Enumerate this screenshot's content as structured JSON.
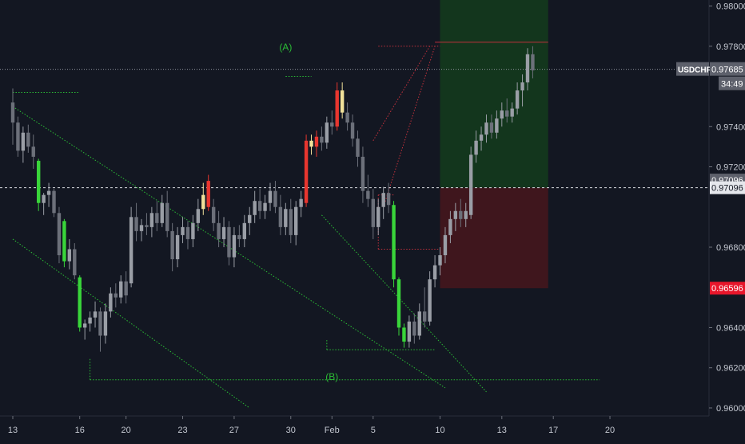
{
  "chart_data": {
    "type": "candlestick",
    "symbol_tag": "USDCHF",
    "timer_tag": "34:49",
    "colors": {
      "background": "#131722",
      "candle_up": "#9a9ea6",
      "candle_down": "#6c707a",
      "green_bar": "#39d53a",
      "red_bar": "#e8362f",
      "yellow_bar": "#f1e19a",
      "trend_line": "#2bbd35",
      "profit_zone": "#13361d",
      "loss_zone": "#3f161d",
      "dashed_red": "#c0313c",
      "axis_text": "#c3c7d0",
      "price_tag_bg": "#5d606b",
      "stop_tag_bg": "#e8162b",
      "target_tag_bg": "#e5e7ec"
    },
    "y_axis": {
      "min": 0.9596,
      "max": 0.9803,
      "ticks": [
        "0.98000",
        "0.97800",
        "0.97400",
        "0.97200",
        "0.96800",
        "0.96400",
        "0.96200",
        "0.96000"
      ]
    },
    "x_axis": {
      "min": 0,
      "max": 114,
      "ticks": [
        {
          "i": 0,
          "label": "13"
        },
        {
          "i": 13,
          "label": "16"
        },
        {
          "i": 22,
          "label": "20"
        },
        {
          "i": 33,
          "label": "23"
        },
        {
          "i": 43,
          "label": "27"
        },
        {
          "i": 54,
          "label": "30"
        },
        {
          "i": 62,
          "label": "Feb"
        },
        {
          "i": 70,
          "label": "5"
        },
        {
          "i": 83,
          "label": "10"
        },
        {
          "i": 95,
          "label": "13"
        },
        {
          "i": 105,
          "label": "17"
        },
        {
          "i": 116,
          "label": "20"
        }
      ]
    },
    "price_levels": {
      "current": {
        "label": "USDCHF",
        "value": 0.97685,
        "text": "0.97685"
      },
      "entry": {
        "value": 0.97096,
        "text": "0.97096"
      },
      "entry_crosshair": {
        "value": 0.97096,
        "text": "0.97096"
      },
      "stop": {
        "value": 0.96596,
        "text": "0.96596"
      }
    },
    "position": {
      "start_i": 83,
      "end_i": 104,
      "target": 0.9803,
      "entry": 0.97096,
      "stop": 0.96596
    },
    "annotations": [
      {
        "text": "(A)",
        "i": 53,
        "y": 0.9778
      },
      {
        "text": "(B)",
        "i": 62,
        "y": 0.9614
      }
    ],
    "candles": [
      {
        "o": 0.9752,
        "h": 0.9759,
        "l": 0.9731,
        "c": 0.9742,
        "k": "down"
      },
      {
        "o": 0.9742,
        "h": 0.9745,
        "l": 0.9725,
        "c": 0.9728,
        "k": "down"
      },
      {
        "o": 0.9728,
        "h": 0.974,
        "l": 0.9722,
        "c": 0.9737,
        "k": "up"
      },
      {
        "o": 0.9737,
        "h": 0.9741,
        "l": 0.9727,
        "c": 0.973,
        "k": "down"
      },
      {
        "o": 0.973,
        "h": 0.9736,
        "l": 0.9719,
        "c": 0.9725,
        "k": "down"
      },
      {
        "o": 0.9723,
        "h": 0.9724,
        "l": 0.9698,
        "c": 0.9702,
        "k": "green"
      },
      {
        "o": 0.9702,
        "h": 0.9707,
        "l": 0.9696,
        "c": 0.9706,
        "k": "up"
      },
      {
        "o": 0.9706,
        "h": 0.9712,
        "l": 0.97,
        "c": 0.9708,
        "k": "up"
      },
      {
        "o": 0.9708,
        "h": 0.9709,
        "l": 0.9695,
        "c": 0.9697,
        "k": "down"
      },
      {
        "o": 0.9697,
        "h": 0.97,
        "l": 0.9672,
        "c": 0.9676,
        "k": "down"
      },
      {
        "o": 0.9693,
        "h": 0.9694,
        "l": 0.967,
        "c": 0.9673,
        "k": "green"
      },
      {
        "o": 0.9673,
        "h": 0.9684,
        "l": 0.9669,
        "c": 0.9679,
        "k": "up"
      },
      {
        "o": 0.9679,
        "h": 0.9682,
        "l": 0.9664,
        "c": 0.9666,
        "k": "down"
      },
      {
        "o": 0.9665,
        "h": 0.9666,
        "l": 0.9638,
        "c": 0.964,
        "k": "green"
      },
      {
        "o": 0.964,
        "h": 0.9644,
        "l": 0.9634,
        "c": 0.9642,
        "k": "up"
      },
      {
        "o": 0.9642,
        "h": 0.9648,
        "l": 0.9638,
        "c": 0.9645,
        "k": "up"
      },
      {
        "o": 0.9645,
        "h": 0.9653,
        "l": 0.964,
        "c": 0.9648,
        "k": "up"
      },
      {
        "o": 0.9648,
        "h": 0.965,
        "l": 0.9628,
        "c": 0.9636,
        "k": "down"
      },
      {
        "o": 0.9636,
        "h": 0.9652,
        "l": 0.9632,
        "c": 0.9648,
        "k": "up"
      },
      {
        "o": 0.9648,
        "h": 0.966,
        "l": 0.9645,
        "c": 0.9657,
        "k": "up"
      },
      {
        "o": 0.9657,
        "h": 0.9662,
        "l": 0.965,
        "c": 0.9655,
        "k": "down"
      },
      {
        "o": 0.9655,
        "h": 0.9666,
        "l": 0.9652,
        "c": 0.9663,
        "k": "up"
      },
      {
        "o": 0.9663,
        "h": 0.9668,
        "l": 0.9652,
        "c": 0.9656,
        "k": "down"
      },
      {
        "o": 0.9662,
        "h": 0.97,
        "l": 0.966,
        "c": 0.9695,
        "k": "up"
      },
      {
        "o": 0.9695,
        "h": 0.9702,
        "l": 0.9683,
        "c": 0.9688,
        "k": "down"
      },
      {
        "o": 0.9688,
        "h": 0.9694,
        "l": 0.9683,
        "c": 0.9691,
        "k": "up"
      },
      {
        "o": 0.9691,
        "h": 0.9697,
        "l": 0.9686,
        "c": 0.969,
        "k": "down"
      },
      {
        "o": 0.969,
        "h": 0.97,
        "l": 0.9685,
        "c": 0.9697,
        "k": "up"
      },
      {
        "o": 0.9697,
        "h": 0.9703,
        "l": 0.9688,
        "c": 0.9692,
        "k": "down"
      },
      {
        "o": 0.9692,
        "h": 0.9706,
        "l": 0.969,
        "c": 0.9702,
        "k": "up"
      },
      {
        "o": 0.9702,
        "h": 0.9708,
        "l": 0.9685,
        "c": 0.9688,
        "k": "down"
      },
      {
        "o": 0.9688,
        "h": 0.9692,
        "l": 0.9668,
        "c": 0.9674,
        "k": "down"
      },
      {
        "o": 0.9674,
        "h": 0.969,
        "l": 0.967,
        "c": 0.9686,
        "k": "up"
      },
      {
        "o": 0.9686,
        "h": 0.9695,
        "l": 0.9682,
        "c": 0.969,
        "k": "up"
      },
      {
        "o": 0.969,
        "h": 0.9693,
        "l": 0.9679,
        "c": 0.9684,
        "k": "down"
      },
      {
        "o": 0.9684,
        "h": 0.9696,
        "l": 0.968,
        "c": 0.9692,
        "k": "up"
      },
      {
        "o": 0.9692,
        "h": 0.9704,
        "l": 0.9688,
        "c": 0.9699,
        "k": "up"
      },
      {
        "o": 0.9699,
        "h": 0.9712,
        "l": 0.9696,
        "c": 0.9706,
        "k": "yellow"
      },
      {
        "o": 0.9713,
        "h": 0.9716,
        "l": 0.9698,
        "c": 0.97,
        "k": "red"
      },
      {
        "o": 0.97,
        "h": 0.9704,
        "l": 0.9688,
        "c": 0.9692,
        "k": "down"
      },
      {
        "o": 0.9692,
        "h": 0.9698,
        "l": 0.968,
        "c": 0.9684,
        "k": "down"
      },
      {
        "o": 0.9684,
        "h": 0.9695,
        "l": 0.968,
        "c": 0.969,
        "k": "up"
      },
      {
        "o": 0.969,
        "h": 0.9693,
        "l": 0.9671,
        "c": 0.9675,
        "k": "down"
      },
      {
        "o": 0.9675,
        "h": 0.969,
        "l": 0.967,
        "c": 0.9686,
        "k": "up"
      },
      {
        "o": 0.9686,
        "h": 0.9691,
        "l": 0.968,
        "c": 0.9684,
        "k": "down"
      },
      {
        "o": 0.9684,
        "h": 0.9696,
        "l": 0.968,
        "c": 0.9692,
        "k": "up"
      },
      {
        "o": 0.9692,
        "h": 0.97,
        "l": 0.9686,
        "c": 0.9696,
        "k": "up"
      },
      {
        "o": 0.9696,
        "h": 0.9708,
        "l": 0.9692,
        "c": 0.9703,
        "k": "up"
      },
      {
        "o": 0.9703,
        "h": 0.9709,
        "l": 0.9694,
        "c": 0.9698,
        "k": "down"
      },
      {
        "o": 0.9698,
        "h": 0.9706,
        "l": 0.9694,
        "c": 0.9702,
        "k": "up"
      },
      {
        "o": 0.9702,
        "h": 0.9712,
        "l": 0.9698,
        "c": 0.9708,
        "k": "up"
      },
      {
        "o": 0.9708,
        "h": 0.9713,
        "l": 0.9697,
        "c": 0.97,
        "k": "down"
      },
      {
        "o": 0.97,
        "h": 0.9706,
        "l": 0.9686,
        "c": 0.969,
        "k": "down"
      },
      {
        "o": 0.969,
        "h": 0.9702,
        "l": 0.9686,
        "c": 0.9699,
        "k": "up"
      },
      {
        "o": 0.9699,
        "h": 0.9704,
        "l": 0.9682,
        "c": 0.9686,
        "k": "down"
      },
      {
        "o": 0.9686,
        "h": 0.9703,
        "l": 0.9681,
        "c": 0.97,
        "k": "up"
      },
      {
        "o": 0.97,
        "h": 0.9708,
        "l": 0.9695,
        "c": 0.9704,
        "k": "up"
      },
      {
        "o": 0.9702,
        "h": 0.9736,
        "l": 0.97,
        "c": 0.9733,
        "k": "red"
      },
      {
        "o": 0.9733,
        "h": 0.9736,
        "l": 0.9726,
        "c": 0.973,
        "k": "yellow"
      },
      {
        "o": 0.973,
        "h": 0.9738,
        "l": 0.9725,
        "c": 0.9735,
        "k": "red"
      },
      {
        "o": 0.9735,
        "h": 0.974,
        "l": 0.9728,
        "c": 0.9732,
        "k": "down"
      },
      {
        "o": 0.9732,
        "h": 0.9745,
        "l": 0.9729,
        "c": 0.9742,
        "k": "up"
      },
      {
        "o": 0.9742,
        "h": 0.9748,
        "l": 0.9736,
        "c": 0.974,
        "k": "down"
      },
      {
        "o": 0.974,
        "h": 0.9762,
        "l": 0.9738,
        "c": 0.9758,
        "k": "red"
      },
      {
        "o": 0.9758,
        "h": 0.9762,
        "l": 0.9744,
        "c": 0.9747,
        "k": "yellow"
      },
      {
        "o": 0.9747,
        "h": 0.9752,
        "l": 0.9738,
        "c": 0.9742,
        "k": "down"
      },
      {
        "o": 0.9742,
        "h": 0.9746,
        "l": 0.973,
        "c": 0.9734,
        "k": "down"
      },
      {
        "o": 0.9734,
        "h": 0.9738,
        "l": 0.972,
        "c": 0.9725,
        "k": "down"
      },
      {
        "o": 0.9725,
        "h": 0.973,
        "l": 0.9702,
        "c": 0.9708,
        "k": "down"
      },
      {
        "o": 0.9708,
        "h": 0.9716,
        "l": 0.97,
        "c": 0.9704,
        "k": "down"
      },
      {
        "o": 0.9704,
        "h": 0.9709,
        "l": 0.9684,
        "c": 0.969,
        "k": "down"
      },
      {
        "o": 0.969,
        "h": 0.9704,
        "l": 0.9686,
        "c": 0.97,
        "k": "up"
      },
      {
        "o": 0.97,
        "h": 0.971,
        "l": 0.9694,
        "c": 0.9707,
        "k": "up"
      },
      {
        "o": 0.9707,
        "h": 0.9712,
        "l": 0.9697,
        "c": 0.9701,
        "k": "down"
      },
      {
        "o": 0.9701,
        "h": 0.9703,
        "l": 0.966,
        "c": 0.9664,
        "k": "green"
      },
      {
        "o": 0.9664,
        "h": 0.9665,
        "l": 0.9636,
        "c": 0.964,
        "k": "green"
      },
      {
        "o": 0.964,
        "h": 0.9642,
        "l": 0.963,
        "c": 0.9633,
        "k": "green"
      },
      {
        "o": 0.9633,
        "h": 0.9646,
        "l": 0.963,
        "c": 0.9643,
        "k": "up"
      },
      {
        "o": 0.9643,
        "h": 0.9647,
        "l": 0.9632,
        "c": 0.9636,
        "k": "down"
      },
      {
        "o": 0.9636,
        "h": 0.9652,
        "l": 0.9634,
        "c": 0.9648,
        "k": "up"
      },
      {
        "o": 0.9648,
        "h": 0.966,
        "l": 0.964,
        "c": 0.9643,
        "k": "down"
      },
      {
        "o": 0.9643,
        "h": 0.9668,
        "l": 0.9641,
        "c": 0.9664,
        "k": "up"
      },
      {
        "o": 0.9664,
        "h": 0.9676,
        "l": 0.966,
        "c": 0.9671,
        "k": "up"
      },
      {
        "o": 0.9671,
        "h": 0.968,
        "l": 0.9666,
        "c": 0.9676,
        "k": "up"
      },
      {
        "o": 0.9676,
        "h": 0.969,
        "l": 0.9672,
        "c": 0.9686,
        "k": "up"
      },
      {
        "o": 0.9686,
        "h": 0.9698,
        "l": 0.9682,
        "c": 0.9694,
        "k": "up"
      },
      {
        "o": 0.9694,
        "h": 0.9702,
        "l": 0.9688,
        "c": 0.9698,
        "k": "up"
      },
      {
        "o": 0.9698,
        "h": 0.9704,
        "l": 0.969,
        "c": 0.9694,
        "k": "down"
      },
      {
        "o": 0.9694,
        "h": 0.9702,
        "l": 0.969,
        "c": 0.9698,
        "k": "up"
      },
      {
        "o": 0.9696,
        "h": 0.973,
        "l": 0.9694,
        "c": 0.9726,
        "k": "up"
      },
      {
        "o": 0.9726,
        "h": 0.9738,
        "l": 0.9722,
        "c": 0.9733,
        "k": "up"
      },
      {
        "o": 0.9733,
        "h": 0.974,
        "l": 0.9728,
        "c": 0.9736,
        "k": "up"
      },
      {
        "o": 0.9736,
        "h": 0.9746,
        "l": 0.9732,
        "c": 0.9742,
        "k": "up"
      },
      {
        "o": 0.9742,
        "h": 0.9746,
        "l": 0.9734,
        "c": 0.9737,
        "k": "down"
      },
      {
        "o": 0.9737,
        "h": 0.9748,
        "l": 0.9734,
        "c": 0.9744,
        "k": "up"
      },
      {
        "o": 0.9744,
        "h": 0.9752,
        "l": 0.974,
        "c": 0.9748,
        "k": "up"
      },
      {
        "o": 0.9748,
        "h": 0.9754,
        "l": 0.9742,
        "c": 0.9745,
        "k": "down"
      },
      {
        "o": 0.9745,
        "h": 0.9752,
        "l": 0.9742,
        "c": 0.9749,
        "k": "up"
      },
      {
        "o": 0.9749,
        "h": 0.9762,
        "l": 0.9746,
        "c": 0.9758,
        "k": "up"
      },
      {
        "o": 0.9758,
        "h": 0.9766,
        "l": 0.975,
        "c": 0.9762,
        "k": "up"
      },
      {
        "o": 0.9762,
        "h": 0.9779,
        "l": 0.9758,
        "c": 0.9776,
        "k": "up"
      },
      {
        "o": 0.9776,
        "h": 0.978,
        "l": 0.9764,
        "c": 0.9768,
        "k": "down"
      }
    ],
    "green_lines": [
      {
        "kind": "dotted",
        "from": {
          "i": 0,
          "y": 0.9757
        },
        "to": {
          "i": 13,
          "y": 0.9757
        }
      },
      {
        "kind": "dotted",
        "from": {
          "i": 0,
          "y": 0.975
        },
        "to": {
          "i": 84,
          "y": 0.961
        }
      },
      {
        "kind": "dotted",
        "from": {
          "i": 0,
          "y": 0.9684
        },
        "to": {
          "i": 46,
          "y": 0.96
        }
      },
      {
        "kind": "dotted",
        "from": {
          "i": 15,
          "y": 0.9614
        },
        "to": {
          "i": 114,
          "y": 0.9614
        }
      },
      {
        "kind": "dotted",
        "from": {
          "i": 15,
          "y": 0.9614
        },
        "to": {
          "i": 15,
          "y": 0.9625
        }
      },
      {
        "kind": "dotted",
        "from": {
          "i": 53,
          "y": 0.9765
        },
        "to": {
          "i": 58,
          "y": 0.9765
        }
      },
      {
        "kind": "dotted",
        "from": {
          "i": 61,
          "y": 0.9629
        },
        "to": {
          "i": 82,
          "y": 0.9629
        }
      },
      {
        "kind": "dotted",
        "from": {
          "i": 61,
          "y": 0.9629
        },
        "to": {
          "i": 61,
          "y": 0.9634
        }
      },
      {
        "kind": "dotted",
        "from": {
          "i": 60,
          "y": 0.9696
        },
        "to": {
          "i": 92,
          "y": 0.9608
        }
      }
    ],
    "red_lines": [
      {
        "kind": "dotted",
        "from": {
          "i": 71,
          "y": 0.978
        },
        "to": {
          "i": 83,
          "y": 0.978
        }
      },
      {
        "kind": "dotted",
        "from": {
          "i": 72,
          "y": 0.97
        },
        "to": {
          "i": 82,
          "y": 0.978
        }
      },
      {
        "kind": "dotted",
        "from": {
          "i": 70,
          "y": 0.9733
        },
        "to": {
          "i": 81,
          "y": 0.978
        }
      },
      {
        "kind": "dotted",
        "from": {
          "i": 71,
          "y": 0.9706
        },
        "to": {
          "i": 74,
          "y": 0.9706
        }
      },
      {
        "kind": "dotted",
        "from": {
          "i": 71,
          "y": 0.9679
        },
        "to": {
          "i": 83,
          "y": 0.9679
        }
      },
      {
        "kind": "dotted",
        "from": {
          "i": 71,
          "y": 0.9679
        },
        "to": {
          "i": 71,
          "y": 0.9706
        }
      },
      {
        "kind": "solid",
        "from": {
          "i": 82,
          "y": 0.9782
        },
        "to": {
          "i": 104,
          "y": 0.9782
        }
      }
    ]
  }
}
